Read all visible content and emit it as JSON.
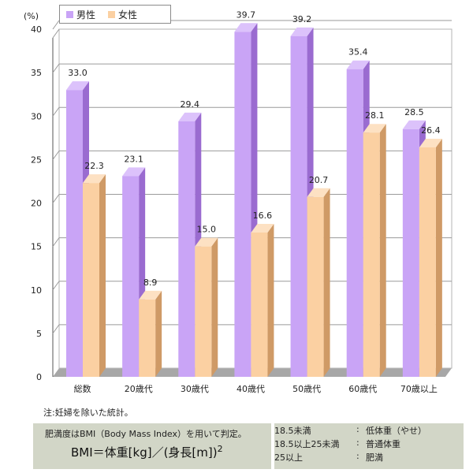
{
  "chart_data": {
    "type": "bar",
    "y_unit": "(%)",
    "ylim": [
      0,
      40
    ],
    "yticks": [
      "0",
      "5",
      "10",
      "15",
      "20",
      "25",
      "30",
      "35",
      "40"
    ],
    "grid": true,
    "legend_position": "top-left",
    "categories": [
      "総数",
      "20歳代",
      "30歳代",
      "40歳代",
      "50歳代",
      "60歳代",
      "70歳以上"
    ],
    "series": [
      {
        "name": "男性",
        "values": [
          33.0,
          23.1,
          29.4,
          39.7,
          39.2,
          35.4,
          28.5
        ],
        "labels": [
          "33.0",
          "23.1",
          "29.4",
          "39.7",
          "39.2",
          "35.4",
          "28.5"
        ]
      },
      {
        "name": "女性",
        "values": [
          22.3,
          8.9,
          15.0,
          16.6,
          20.7,
          28.1,
          26.4
        ],
        "labels": [
          "22.3",
          "8.9",
          "15.0",
          "16.6",
          "20.7",
          "28.1",
          "26.4"
        ]
      }
    ]
  },
  "colors": {
    "male_front": "#c9a4f6",
    "male_side": "#9a6bd0",
    "male_top": "#dcc2fb",
    "female_front": "#fbd0a2",
    "female_side": "#cf9a66",
    "female_top": "#fde1c3",
    "floor": "#a7a7a7",
    "wall": "#ffffff"
  },
  "note": "注:妊婦を除いた統計。",
  "bmi": {
    "description": "肥満度はBMI（Body Mass Index）を用いて判定。",
    "formula": "BMI＝体重[kg]／(身長[m])",
    "formula_exp": "2",
    "classes": [
      {
        "range": "18.5未満",
        "colon": ":",
        "label": "低体重（やせ）"
      },
      {
        "range": "18.5以上25未満",
        "colon": ":",
        "label": "普通体重"
      },
      {
        "range": "25以上",
        "colon": ":",
        "label": "肥満"
      }
    ]
  }
}
